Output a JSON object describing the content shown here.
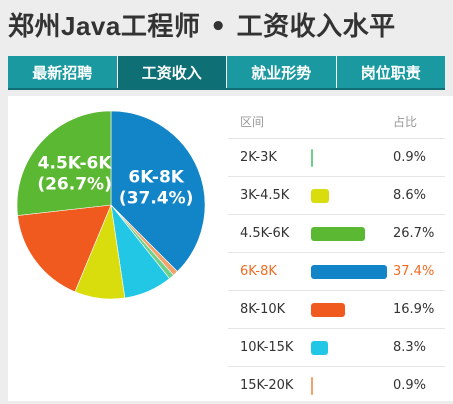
{
  "page": {
    "title_prefix": "郑州",
    "title_latin": "Java",
    "title_suffix": "工程师 • 工资收入水平"
  },
  "tabs": [
    {
      "label": "最新招聘",
      "active": false
    },
    {
      "label": "工资收入",
      "active": true
    },
    {
      "label": "就业形势",
      "active": false
    },
    {
      "label": "岗位职责",
      "active": false
    }
  ],
  "table": {
    "header_range": "区间",
    "header_pct": "占比",
    "highlight_color": "#f06c22"
  },
  "chart_data": {
    "type": "pie",
    "title": "",
    "start_angle_deg": 90,
    "direction": "clockwise",
    "slices": [
      {
        "label": "6K-8K",
        "value": 37.4,
        "display": "37.4%",
        "color": "#1185c7",
        "highlight": true,
        "pie_label": "6K-8K",
        "pie_pct": "(37.4%)"
      },
      {
        "label": "15K-20K",
        "value": 0.9,
        "display": "0.9%",
        "color": "#f2a26a",
        "highlight": false
      },
      {
        "label": "2K-3K",
        "value": 0.9,
        "display": "0.9%",
        "color": "#6fd08a",
        "highlight": false
      },
      {
        "label": "10K-15K",
        "value": 8.3,
        "display": "8.3%",
        "color": "#22c7e6",
        "highlight": false
      },
      {
        "label": "3K-4.5K",
        "value": 8.6,
        "display": "8.6%",
        "color": "#d9dd0e",
        "highlight": false
      },
      {
        "label": "8K-10K",
        "value": 16.9,
        "display": "16.9%",
        "color": "#f05a1e",
        "highlight": false
      },
      {
        "label": "4.5K-6K",
        "value": 26.7,
        "display": "26.7%",
        "color": "#5bb832",
        "highlight": false,
        "pie_label": "4.5K-6K",
        "pie_pct": "(26.7%)"
      }
    ],
    "table_order": [
      "2K-3K",
      "3K-4.5K",
      "4.5K-6K",
      "6K-8K",
      "8K-10K",
      "10K-15K",
      "15K-20K"
    ]
  }
}
